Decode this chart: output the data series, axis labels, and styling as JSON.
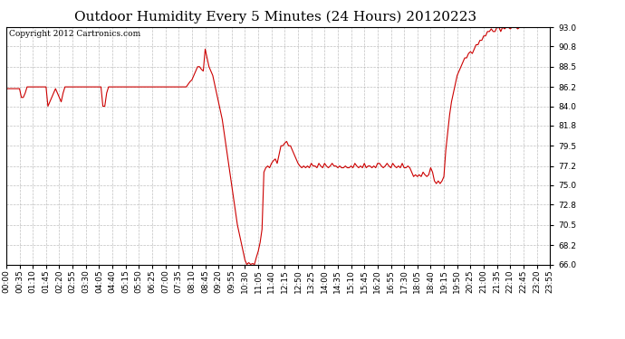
{
  "title": "Outdoor Humidity Every 5 Minutes (24 Hours) 20120223",
  "copyright": "Copyright 2012 Cartronics.com",
  "line_color": "#cc0000",
  "background_color": "#ffffff",
  "plot_bg_color": "#ffffff",
  "grid_color": "#b0b0b0",
  "ylim": [
    66.0,
    93.0
  ],
  "yticks": [
    66.0,
    68.2,
    70.5,
    72.8,
    75.0,
    77.2,
    79.5,
    81.8,
    84.0,
    86.2,
    88.5,
    90.8,
    93.0
  ],
  "title_fontsize": 11,
  "copyright_fontsize": 6.5,
  "tick_fontsize": 6.5,
  "xtick_labels": [
    "00:00",
    "00:35",
    "01:10",
    "01:45",
    "02:20",
    "02:55",
    "03:30",
    "04:05",
    "04:40",
    "05:15",
    "05:50",
    "06:25",
    "07:00",
    "07:35",
    "08:10",
    "08:45",
    "09:20",
    "09:55",
    "10:30",
    "11:05",
    "11:40",
    "12:15",
    "12:50",
    "13:25",
    "14:00",
    "14:35",
    "15:10",
    "15:45",
    "16:20",
    "16:55",
    "17:30",
    "18:05",
    "18:40",
    "19:15",
    "19:50",
    "20:25",
    "21:00",
    "21:35",
    "22:10",
    "22:45",
    "23:20",
    "23:55"
  ],
  "humidity": [
    86.0,
    86.0,
    86.0,
    86.0,
    86.0,
    86.0,
    86.0,
    86.0,
    85.0,
    85.0,
    85.5,
    86.2,
    86.2,
    86.2,
    86.2,
    86.2,
    86.2,
    86.2,
    86.2,
    86.2,
    86.2,
    86.2,
    84.0,
    84.5,
    85.0,
    85.5,
    86.0,
    85.5,
    85.0,
    84.5,
    85.5,
    86.2,
    86.2,
    86.2,
    86.2,
    86.2,
    86.2,
    86.2,
    86.2,
    86.2,
    86.2,
    86.2,
    86.2,
    86.2,
    86.2,
    86.2,
    86.2,
    86.2,
    86.2,
    86.2,
    86.2,
    84.0,
    84.0,
    85.5,
    86.2,
    86.2,
    86.2,
    86.2,
    86.2,
    86.2,
    86.2,
    86.2,
    86.2,
    86.2,
    86.2,
    86.2,
    86.2,
    86.2,
    86.2,
    86.2,
    86.2,
    86.2,
    86.2,
    86.2,
    86.2,
    86.2,
    86.2,
    86.2,
    86.2,
    86.2,
    86.2,
    86.2,
    86.2,
    86.2,
    86.2,
    86.2,
    86.2,
    86.2,
    86.2,
    86.2,
    86.2,
    86.2,
    86.2,
    86.2,
    86.2,
    86.2,
    86.5,
    86.8,
    87.0,
    87.5,
    88.0,
    88.5,
    88.5,
    88.2,
    88.0,
    90.5,
    89.5,
    88.5,
    88.0,
    87.5,
    86.5,
    85.5,
    84.5,
    83.5,
    82.5,
    81.0,
    79.5,
    78.0,
    76.5,
    75.0,
    73.5,
    72.0,
    70.5,
    69.5,
    68.5,
    67.5,
    66.5,
    66.0,
    66.2,
    66.0,
    66.1,
    66.0,
    66.8,
    67.5,
    68.5,
    70.0,
    76.5,
    77.0,
    77.2,
    77.0,
    77.5,
    77.8,
    78.0,
    77.5,
    78.5,
    79.5,
    79.5,
    79.8,
    80.0,
    79.5,
    79.5,
    79.0,
    78.5,
    78.0,
    77.5,
    77.2,
    77.0,
    77.2,
    77.0,
    77.2,
    77.0,
    77.5,
    77.2,
    77.2,
    77.0,
    77.5,
    77.2,
    77.0,
    77.5,
    77.2,
    77.0,
    77.2,
    77.5,
    77.2,
    77.2,
    77.0,
    77.2,
    77.0,
    77.0,
    77.2,
    77.0,
    77.0,
    77.2,
    77.0,
    77.5,
    77.2,
    77.0,
    77.2,
    77.0,
    77.5,
    77.0,
    77.2,
    77.2,
    77.0,
    77.2,
    77.0,
    77.5,
    77.5,
    77.2,
    77.0,
    77.2,
    77.5,
    77.2,
    77.0,
    77.5,
    77.2,
    77.0,
    77.2,
    77.0,
    77.5,
    77.0,
    77.0,
    77.2,
    77.0,
    76.5,
    76.0,
    76.2,
    76.0,
    76.2,
    76.0,
    76.5,
    76.2,
    76.0,
    76.2,
    77.0,
    76.5,
    75.5,
    75.2,
    75.5,
    75.2,
    75.5,
    76.0,
    79.0,
    81.0,
    83.0,
    84.5,
    85.5,
    86.5,
    87.5,
    88.0,
    88.5,
    89.0,
    89.5,
    89.5,
    90.0,
    90.2,
    90.0,
    90.5,
    91.0,
    91.0,
    91.5,
    91.5,
    92.0,
    92.0,
    92.5,
    92.5,
    92.8,
    92.5,
    92.5,
    93.0,
    93.0,
    92.5,
    93.0,
    92.8,
    93.0,
    93.0,
    92.8,
    93.0,
    93.0,
    93.0,
    92.8,
    93.0,
    93.2,
    93.0,
    93.0,
    93.2,
    93.5,
    93.2,
    93.5,
    93.5,
    93.2,
    93.5,
    93.5,
    93.2,
    93.5,
    93.5,
    93.2,
    93.5
  ]
}
